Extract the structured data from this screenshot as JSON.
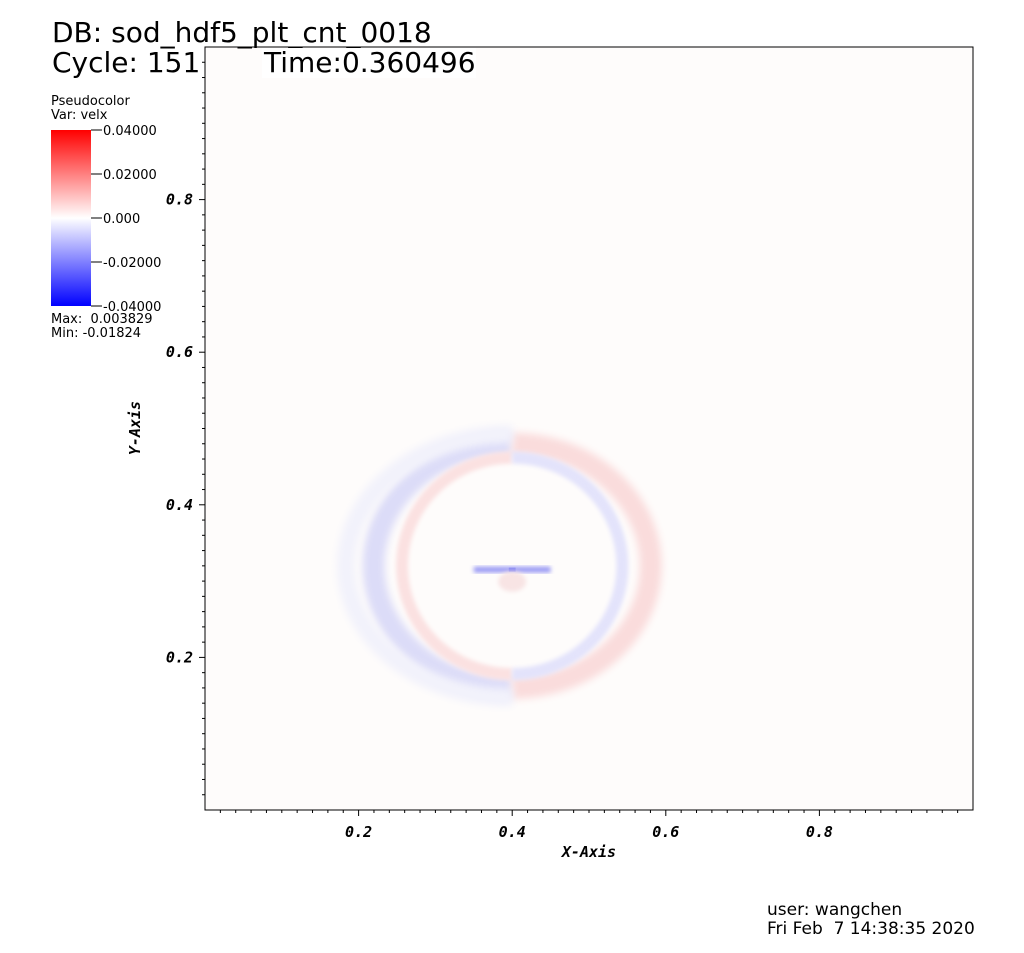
{
  "header": {
    "db_label": "DB: sod_hdf5_plt_cnt_0018",
    "cycle_label": "Cycle: 151",
    "time_label": "Time:0.360496"
  },
  "legend": {
    "plot_type": "Pseudocolor",
    "var_label": "Var: velx",
    "ticks": [
      "0.04000",
      "0.02000",
      "0.000",
      "-0.02000",
      "-0.04000"
    ],
    "max_label": "Max:  0.003829",
    "min_label": "Min: -0.01824",
    "colors": {
      "high": "#ff0000",
      "mid": "#ffffff",
      "low": "#0000ff"
    }
  },
  "chart_data": {
    "type": "heatmap",
    "variable": "velx",
    "xlabel": "X-Axis",
    "ylabel": "Y-Axis",
    "xlim": [
      0,
      1
    ],
    "ylim": [
      0,
      1
    ],
    "x_ticks": [
      "0.2",
      "0.4",
      "0.6",
      "0.8"
    ],
    "y_ticks": [
      "0.8",
      "0.6",
      "0.4",
      "0.2"
    ],
    "color_range": [
      -0.04,
      0.04
    ],
    "data_max": 0.003829,
    "data_min": -0.01824,
    "background_color": "#fefcfb",
    "features": {
      "outer_ring_center": [
        0.4,
        0.32
      ],
      "outer_ring_radius": 0.205,
      "inner_ring_radius": 0.165,
      "streak_y": 0.315,
      "streak_x_range": [
        0.35,
        0.45
      ]
    }
  },
  "footer": {
    "user_label": "user: wangchen",
    "date_label": "Fri Feb  7 14:38:35 2020"
  }
}
